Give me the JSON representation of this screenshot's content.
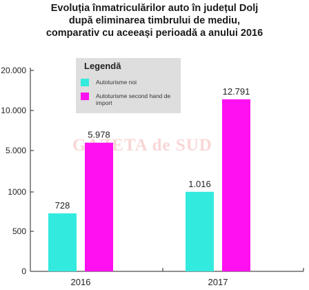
{
  "title_lines": [
    "Evoluția înmatriculărilor auto în județul Dolj",
    "după eliminarea timbrului de mediu,",
    "comparativ cu aceeași perioadă a anului 2016"
  ],
  "watermark": "GAZETA de SUD",
  "legend": {
    "title": "Legendă",
    "items": [
      {
        "label": "Autoturisme noi",
        "color": "#33eadf"
      },
      {
        "label": "Autoturisme second hand de import",
        "color": "#ff10f0"
      }
    ]
  },
  "chart_data": {
    "type": "bar",
    "categories": [
      "2016",
      "2017"
    ],
    "series": [
      {
        "name": "Autoturisme noi",
        "values": [
          728,
          1016
        ],
        "labels": [
          "728",
          "1.016"
        ],
        "color": "#33eadf"
      },
      {
        "name": "Autoturisme second hand de import",
        "values": [
          5978,
          12791
        ],
        "labels": [
          "5.978",
          "12.791"
        ],
        "color": "#ff10f0"
      }
    ],
    "y_axis": {
      "scale": "piecewise",
      "ticks": [
        0,
        500,
        1000,
        5000,
        10000,
        20000
      ],
      "tick_labels": [
        "0",
        "500",
        "1000",
        "5.000",
        "10.000",
        "20.000"
      ]
    }
  }
}
